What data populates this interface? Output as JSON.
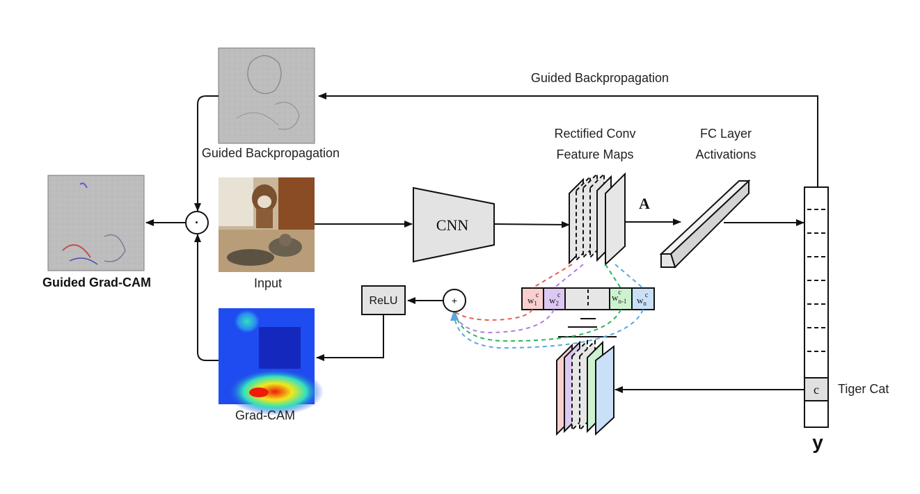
{
  "labels": {
    "guided_backprop_top": "Guided Backpropagation",
    "guided_backprop_image": "Guided Backpropagation",
    "guided_gradcam": "Guided Grad-CAM",
    "input": "Input",
    "gradcam": "Grad-CAM",
    "cnn": "CNN",
    "feature_maps_line1": "Rectified Conv",
    "feature_maps_line2": "Feature Maps",
    "fc_line1": "FC Layer",
    "fc_line2": "Activations",
    "activation_symbol": "A",
    "relu": "ReLU",
    "sum_symbol": "+",
    "pointwise_symbol": "·",
    "class_cell": "c",
    "class_name": "Tiger Cat",
    "output_symbol": "y"
  },
  "weights": [
    {
      "base": "w",
      "sup": "c",
      "sub": "1",
      "color": "#f9cfcf"
    },
    {
      "base": "w",
      "sup": "c",
      "sub": "2",
      "color": "#dcc9f2"
    },
    {
      "base": "w",
      "sup": "c",
      "sub": "n-1",
      "color": "#ccf2cf"
    },
    {
      "base": "w",
      "sup": "c",
      "sub": "n",
      "color": "#c9e0f7"
    }
  ],
  "dashed_colors": [
    "#e0605a",
    "#b07ee0",
    "#2bb35a",
    "#5aa6e0"
  ],
  "heatmap_colors": [
    "#1a2cf0",
    "#2a8af0",
    "#31e0c0",
    "#f2e81a",
    "#f01a0a"
  ]
}
